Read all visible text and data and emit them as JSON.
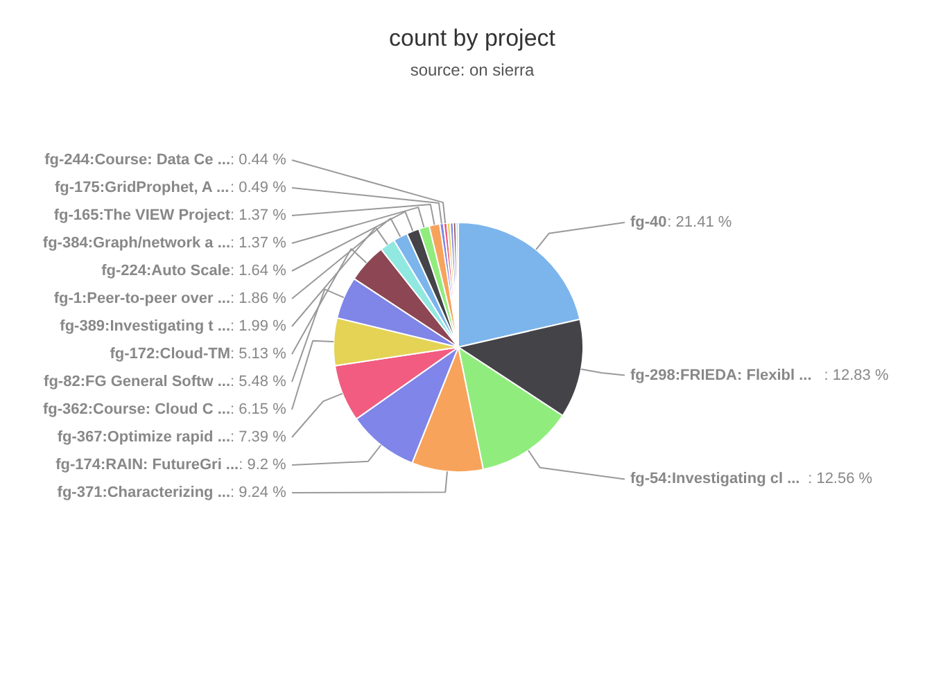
{
  "chart_data": {
    "type": "pie",
    "title": "count by project",
    "subtitle": "source: on sierra",
    "categories": [
      "fg-40",
      "fg-298:FRIEDA: Flexibl ...",
      "fg-54:Investigating cl ...",
      "fg-371:Characterizing ...",
      "fg-174:RAIN: FutureGri ...",
      "fg-367:Optimize rapid ...",
      "fg-362:Course: Cloud C ...",
      "fg-82:FG General Softw ...",
      "fg-172:Cloud-TM",
      "fg-389:Investigating t ...",
      "fg-1:Peer-to-peer over ...",
      "fg-224:Auto Scale",
      "fg-384:Graph/network a ...",
      "fg-165:The VIEW Project",
      "fg-175:GridProphet, A ...",
      "fg-244:Course: Data Ce ...",
      null,
      null,
      null,
      null
    ],
    "values": [
      21.41,
      12.83,
      12.56,
      9.24,
      9.2,
      7.39,
      6.15,
      5.48,
      5.13,
      1.99,
      1.86,
      1.64,
      1.37,
      1.37,
      0.49,
      0.44,
      0.4,
      0.4,
      0.35,
      0.3
    ],
    "colors": [
      "#7cb5ec",
      "#434348",
      "#90ed7d",
      "#f7a35c",
      "#8085e9",
      "#f15c80",
      "#e4d354",
      "#8085e8",
      "#8d4653",
      "#91e8e1",
      "#7cb5ec",
      "#434348",
      "#90ed7d",
      "#f7a35c",
      "#8085e9",
      "#f15c80",
      "#e4d354",
      "#8085e8",
      "#8d4653",
      "#91e8e1"
    ],
    "value_labels": [
      ": 21.41 %",
      ": 12.83 %",
      ": 12.56 %",
      ": 9.24 %",
      ": 9.2 %",
      ": 7.39 %",
      ": 6.15 %",
      ": 5.48 %",
      ": 5.13 %",
      ": 1.99 %",
      ": 1.86 %",
      ": 1.64 %",
      ": 1.37 %",
      ": 1.37 %",
      ": 0.49 %",
      ": 0.44 %",
      null,
      null,
      null,
      null
    ]
  }
}
